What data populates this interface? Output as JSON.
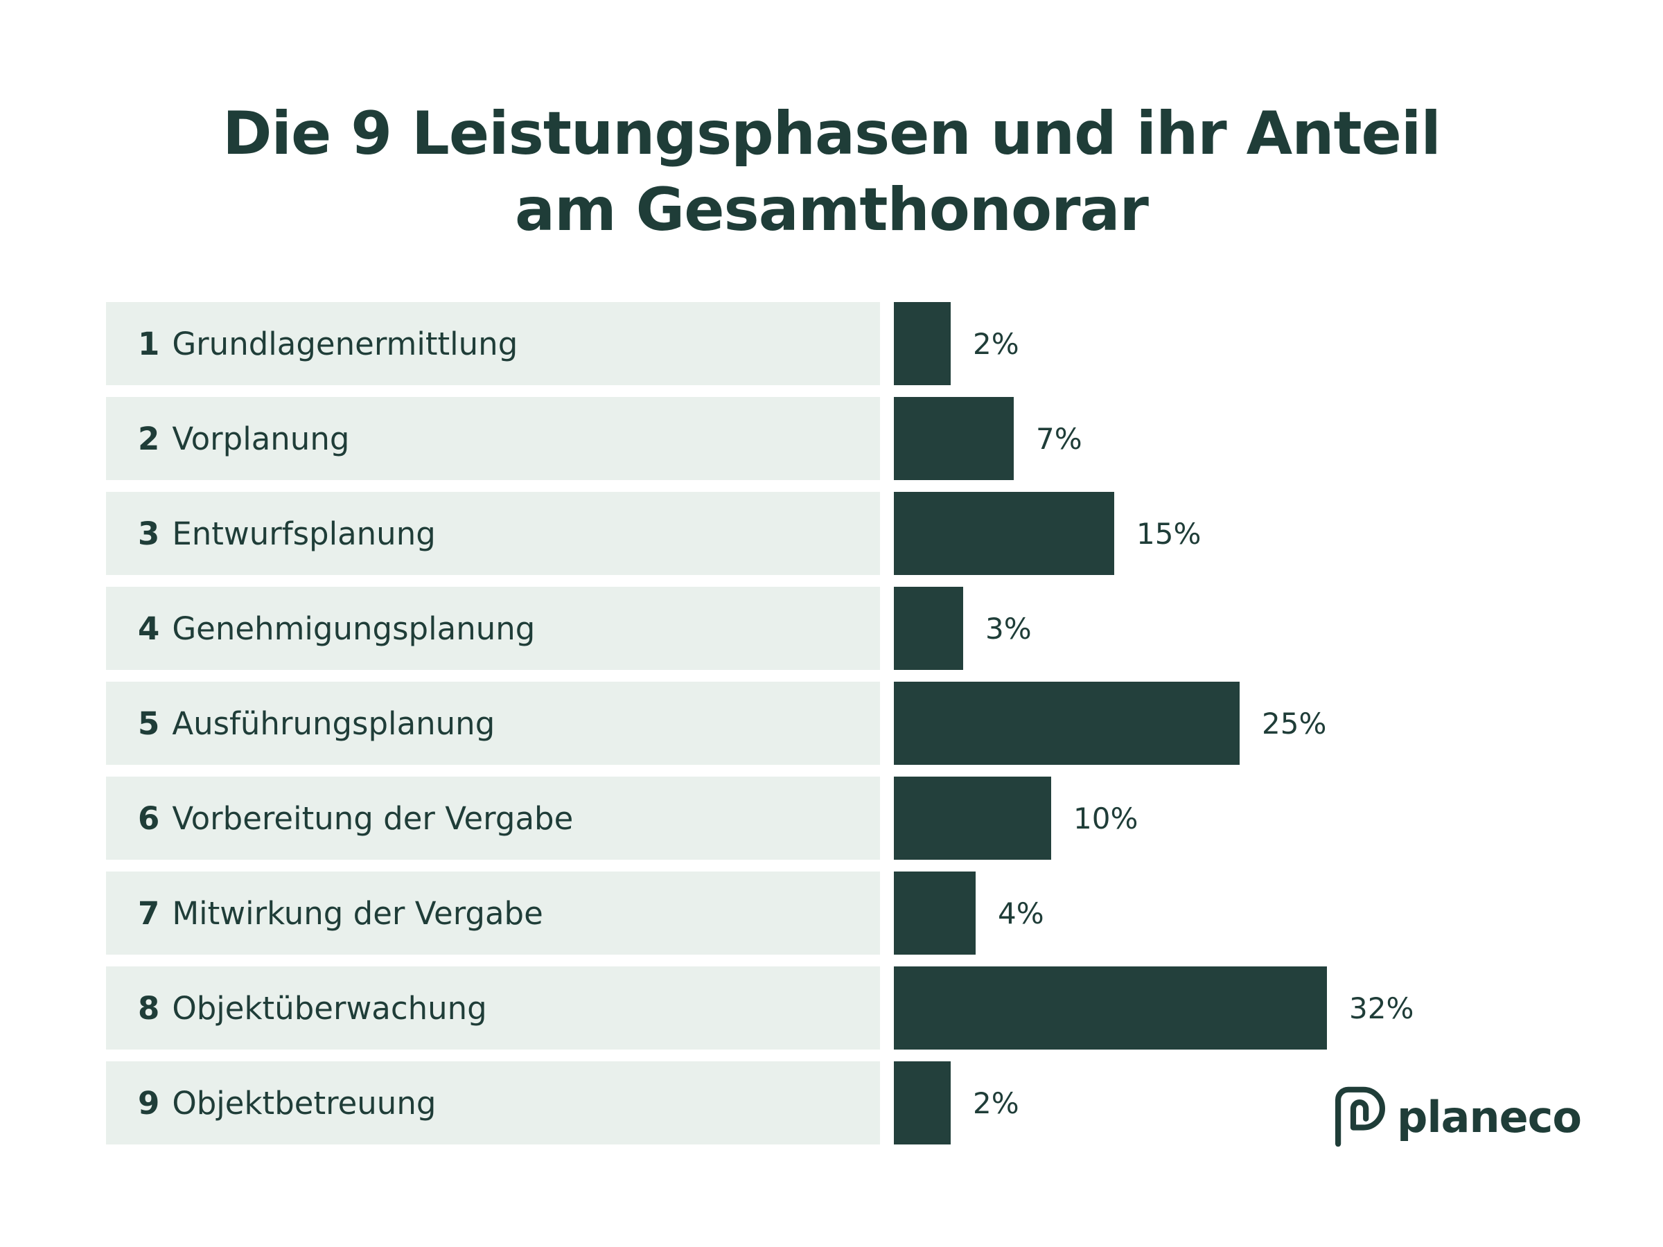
{
  "title_line1": "Die 9 Leistungsphasen und ihr Anteil",
  "title_line2": "am Gesamthonorar",
  "brand": "planeco",
  "colors": {
    "bar": "#23403c",
    "label_bg": "#e9f0ec",
    "text": "#1f3d38"
  },
  "chart_data": {
    "type": "bar",
    "orientation": "horizontal",
    "title": "Die 9 Leistungsphasen und ihr Anteil am Gesamthonorar",
    "xlabel": "",
    "ylabel": "",
    "xlim": [
      0,
      32
    ],
    "grid": false,
    "categories": [
      "Grundlagenermittlung",
      "Vorplanung",
      "Entwurfsplanung",
      "Genehmigungsplanung",
      "Ausführungsplanung",
      "Vorbereitung der Vergabe",
      "Mitwirkung der Vergabe",
      "Objektüberwachung",
      "Objektbetreuung"
    ],
    "numbers": [
      "1",
      "2",
      "3",
      "4",
      "5",
      "6",
      "7",
      "8",
      "9"
    ],
    "values": [
      2,
      7,
      15,
      3,
      25,
      10,
      4,
      32,
      2
    ],
    "value_labels": [
      "2%",
      "7%",
      "15%",
      "3%",
      "25%",
      "10%",
      "4%",
      "32%",
      "2%"
    ]
  }
}
